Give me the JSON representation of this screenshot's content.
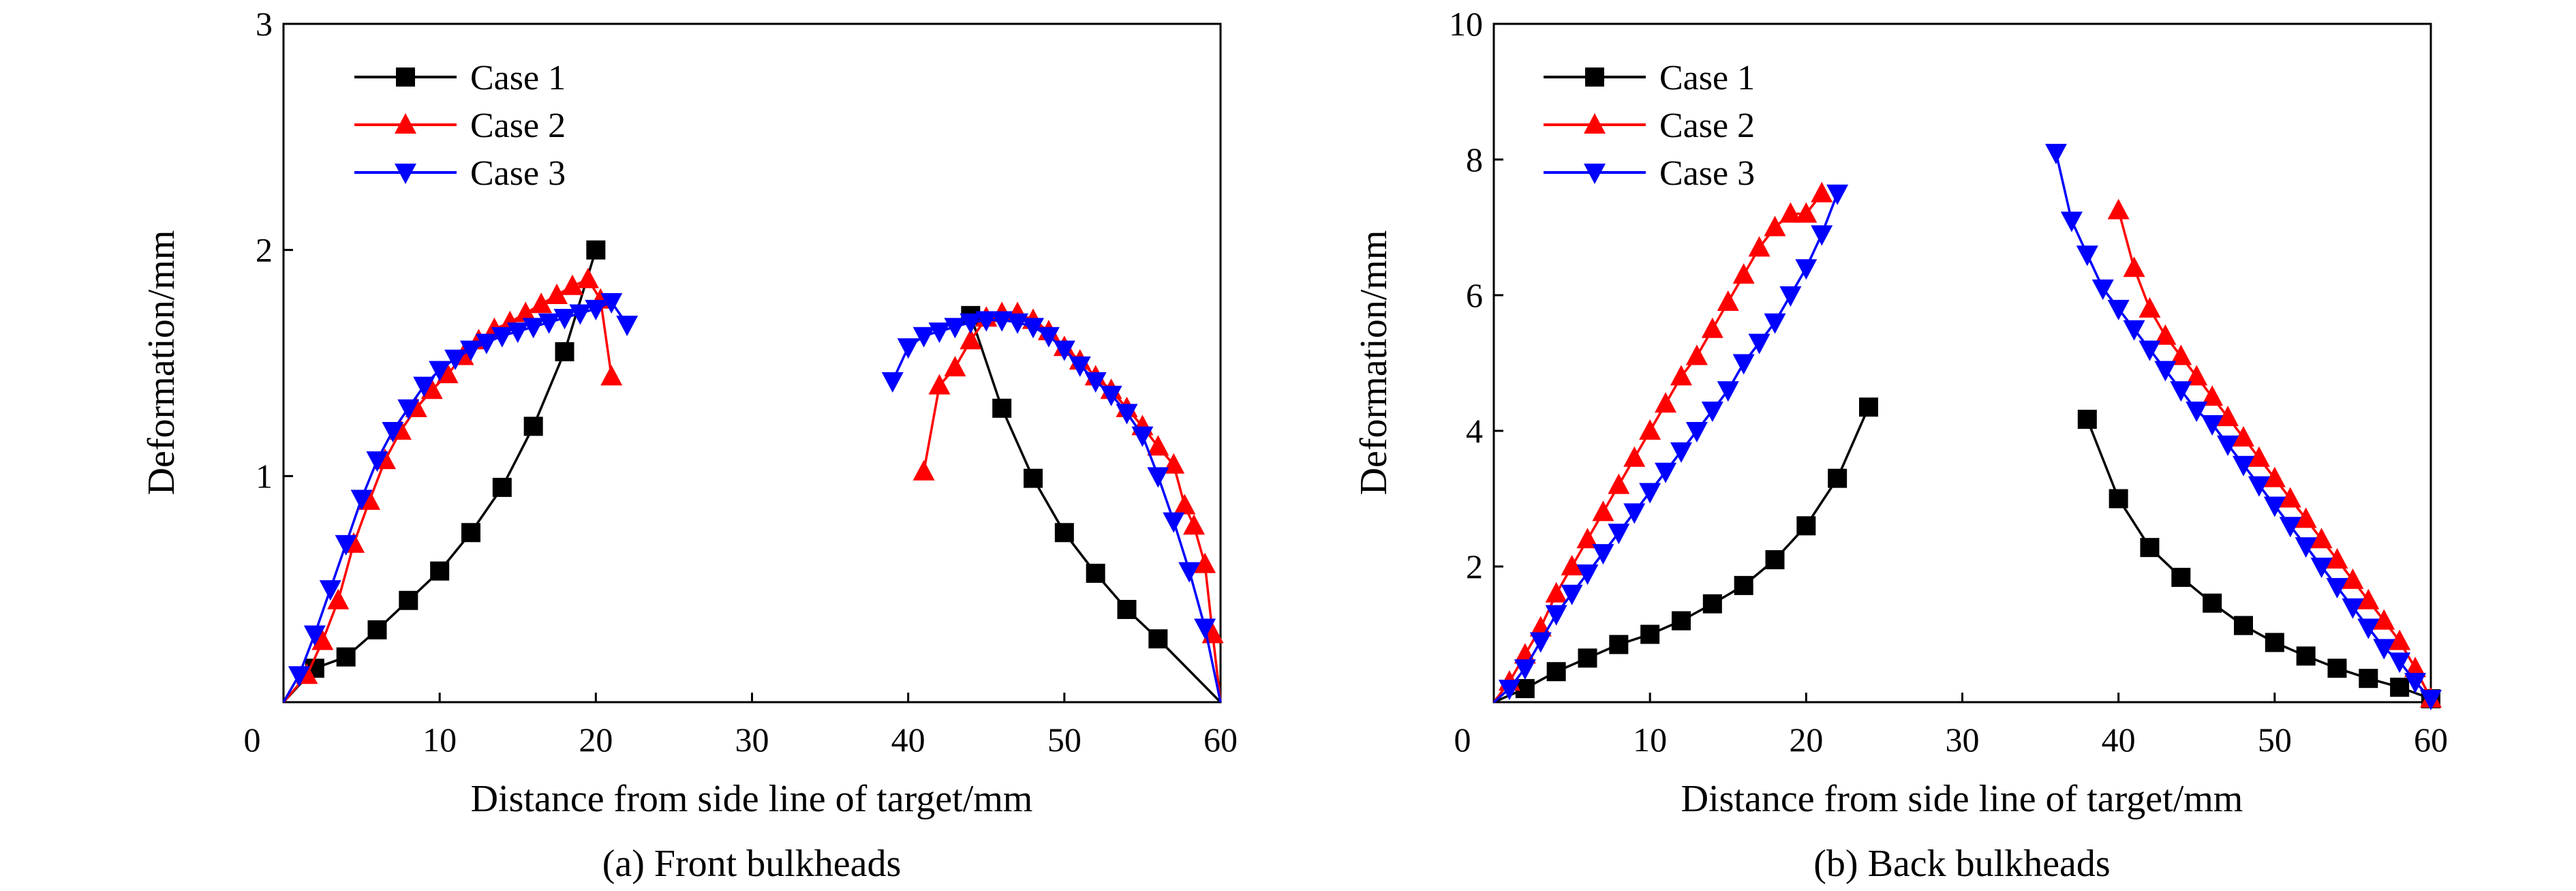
{
  "colors": {
    "case1": "#000000",
    "case2": "#ff0000",
    "case3": "#0000ff",
    "axis": "#000000"
  },
  "chart_data": [
    {
      "type": "line",
      "caption": "(a) Front bulkheads",
      "xlabel": "Distance from side line of target/mm",
      "ylabel": "Deformation/mm",
      "xlim": [
        0,
        60
      ],
      "ylim": [
        0,
        3
      ],
      "xticks": [
        0,
        10,
        20,
        30,
        40,
        50,
        60
      ],
      "yticks": [
        1,
        2,
        3
      ],
      "legend_position": "top-left",
      "series": [
        {
          "name": "Case 1",
          "color": "#000000",
          "marker": "square",
          "segments": [
            [
              [
                0,
                0
              ],
              [
                2,
                0.15
              ],
              [
                4,
                0.2
              ],
              [
                6,
                0.32
              ],
              [
                8,
                0.45
              ],
              [
                10,
                0.58
              ],
              [
                12,
                0.75
              ],
              [
                14,
                0.95
              ],
              [
                16,
                1.22
              ],
              [
                18,
                1.55
              ],
              [
                20,
                2.0
              ]
            ],
            [
              [
                44,
                1.71
              ],
              [
                46,
                1.3
              ],
              [
                48,
                0.99
              ],
              [
                50,
                0.75
              ],
              [
                52,
                0.57
              ],
              [
                54,
                0.41
              ],
              [
                56,
                0.28
              ],
              [
                60,
                0
              ]
            ]
          ]
        },
        {
          "name": "Case 2",
          "color": "#ff0000",
          "marker": "triangle-up",
          "segments": [
            [
              [
                0,
                0
              ],
              [
                1.5,
                0.12
              ],
              [
                2.5,
                0.27
              ],
              [
                3.5,
                0.45
              ],
              [
                4.5,
                0.7
              ],
              [
                5.5,
                0.89
              ],
              [
                6.5,
                1.07
              ],
              [
                7.5,
                1.2
              ],
              [
                8.5,
                1.3
              ],
              [
                9.5,
                1.38
              ],
              [
                10.5,
                1.45
              ],
              [
                11.5,
                1.53
              ],
              [
                12.5,
                1.6
              ],
              [
                13.5,
                1.65
              ],
              [
                14.5,
                1.68
              ],
              [
                15.5,
                1.72
              ],
              [
                16.5,
                1.76
              ],
              [
                17.5,
                1.8
              ],
              [
                18.5,
                1.84
              ],
              [
                19.5,
                1.87
              ],
              [
                20.3,
                1.78
              ],
              [
                21,
                1.44
              ]
            ],
            [
              [
                41,
                1.02
              ],
              [
                42,
                1.4
              ],
              [
                43,
                1.48
              ],
              [
                44,
                1.6
              ],
              [
                45,
                1.7
              ],
              [
                46,
                1.72
              ],
              [
                47,
                1.72
              ],
              [
                48,
                1.69
              ],
              [
                49,
                1.64
              ],
              [
                50,
                1.57
              ],
              [
                51,
                1.51
              ],
              [
                52,
                1.44
              ],
              [
                53,
                1.38
              ],
              [
                54,
                1.3
              ],
              [
                55,
                1.22
              ],
              [
                56,
                1.13
              ],
              [
                57,
                1.05
              ],
              [
                57.7,
                0.87
              ],
              [
                58.3,
                0.78
              ],
              [
                59,
                0.61
              ],
              [
                59.5,
                0.3
              ],
              [
                60,
                0
              ]
            ]
          ]
        },
        {
          "name": "Case 3",
          "color": "#0000ff",
          "marker": "triangle-down",
          "segments": [
            [
              [
                0,
                0
              ],
              [
                1,
                0.12
              ],
              [
                2,
                0.3
              ],
              [
                3,
                0.5
              ],
              [
                4,
                0.7
              ],
              [
                5,
                0.9
              ],
              [
                6,
                1.07
              ],
              [
                7,
                1.2
              ],
              [
                8,
                1.3
              ],
              [
                9,
                1.4
              ],
              [
                10,
                1.47
              ],
              [
                11,
                1.52
              ],
              [
                12,
                1.56
              ],
              [
                13,
                1.59
              ],
              [
                14,
                1.62
              ],
              [
                15,
                1.64
              ],
              [
                16,
                1.66
              ],
              [
                17,
                1.68
              ],
              [
                18,
                1.7
              ],
              [
                19,
                1.72
              ],
              [
                20,
                1.74
              ],
              [
                21,
                1.77
              ],
              [
                22,
                1.67
              ]
            ],
            [
              [
                39,
                1.42
              ],
              [
                40,
                1.57
              ],
              [
                41,
                1.62
              ],
              [
                42,
                1.64
              ],
              [
                43,
                1.66
              ],
              [
                44,
                1.68
              ],
              [
                45,
                1.69
              ],
              [
                46,
                1.69
              ],
              [
                47,
                1.68
              ],
              [
                48,
                1.66
              ],
              [
                49,
                1.62
              ],
              [
                50,
                1.56
              ],
              [
                51,
                1.49
              ],
              [
                52,
                1.42
              ],
              [
                53,
                1.36
              ],
              [
                54,
                1.28
              ],
              [
                55,
                1.18
              ],
              [
                56,
                1.0
              ],
              [
                57,
                0.8
              ],
              [
                58,
                0.58
              ],
              [
                59,
                0.33
              ],
              [
                60,
                0
              ]
            ]
          ]
        }
      ]
    },
    {
      "type": "line",
      "caption": "(b) Back bulkheads",
      "xlabel": "Distance from side line of target/mm",
      "ylabel": "Deformation/mm",
      "xlim": [
        0,
        60
      ],
      "ylim": [
        0,
        10
      ],
      "xticks": [
        0,
        10,
        20,
        30,
        40,
        50,
        60
      ],
      "yticks": [
        2,
        4,
        6,
        8,
        10
      ],
      "legend_position": "top-left",
      "series": [
        {
          "name": "Case 1",
          "color": "#000000",
          "marker": "square",
          "segments": [
            [
              [
                0,
                0
              ],
              [
                2,
                0.2
              ],
              [
                4,
                0.45
              ],
              [
                6,
                0.65
              ],
              [
                8,
                0.85
              ],
              [
                10,
                1.0
              ],
              [
                12,
                1.2
              ],
              [
                14,
                1.45
              ],
              [
                16,
                1.72
              ],
              [
                18,
                2.1
              ],
              [
                20,
                2.6
              ],
              [
                22,
                3.3
              ],
              [
                24,
                4.35
              ]
            ],
            [
              [
                38,
                4.17
              ],
              [
                40,
                3.0
              ],
              [
                42,
                2.28
              ],
              [
                44,
                1.84
              ],
              [
                46,
                1.46
              ],
              [
                48,
                1.13
              ],
              [
                50,
                0.88
              ],
              [
                52,
                0.68
              ],
              [
                54,
                0.5
              ],
              [
                56,
                0.35
              ],
              [
                58,
                0.22
              ],
              [
                60,
                0.05
              ]
            ]
          ]
        },
        {
          "name": "Case 2",
          "color": "#ff0000",
          "marker": "triangle-up",
          "segments": [
            [
              [
                0,
                0
              ],
              [
                1,
                0.3
              ],
              [
                2,
                0.7
              ],
              [
                3,
                1.1
              ],
              [
                4,
                1.6
              ],
              [
                5,
                2.0
              ],
              [
                6,
                2.4
              ],
              [
                7,
                2.8
              ],
              [
                8,
                3.2
              ],
              [
                9,
                3.6
              ],
              [
                10,
                4.0
              ],
              [
                11,
                4.4
              ],
              [
                12,
                4.8
              ],
              [
                13,
                5.1
              ],
              [
                14,
                5.5
              ],
              [
                15,
                5.9
              ],
              [
                16,
                6.3
              ],
              [
                17,
                6.7
              ],
              [
                18,
                7.0
              ],
              [
                19,
                7.2
              ],
              [
                20,
                7.2
              ],
              [
                21,
                7.5
              ]
            ],
            [
              [
                40,
                7.25
              ],
              [
                41,
                6.4
              ],
              [
                42,
                5.8
              ],
              [
                43,
                5.4
              ],
              [
                44,
                5.1
              ],
              [
                45,
                4.8
              ],
              [
                46,
                4.5
              ],
              [
                47,
                4.2
              ],
              [
                48,
                3.9
              ],
              [
                49,
                3.6
              ],
              [
                50,
                3.3
              ],
              [
                51,
                3.0
              ],
              [
                52,
                2.7
              ],
              [
                53,
                2.4
              ],
              [
                54,
                2.1
              ],
              [
                55,
                1.8
              ],
              [
                56,
                1.5
              ],
              [
                57,
                1.2
              ],
              [
                58,
                0.9
              ],
              [
                59,
                0.5
              ],
              [
                60,
                0.05
              ]
            ]
          ]
        },
        {
          "name": "Case 3",
          "color": "#0000ff",
          "marker": "triangle-down",
          "segments": [
            [
              [
                0,
                0
              ],
              [
                1,
                0.2
              ],
              [
                2,
                0.5
              ],
              [
                3,
                0.9
              ],
              [
                4,
                1.3
              ],
              [
                5,
                1.6
              ],
              [
                6,
                1.9
              ],
              [
                7,
                2.2
              ],
              [
                8,
                2.5
              ],
              [
                9,
                2.8
              ],
              [
                10,
                3.1
              ],
              [
                11,
                3.4
              ],
              [
                12,
                3.7
              ],
              [
                13,
                4.0
              ],
              [
                14,
                4.3
              ],
              [
                15,
                4.6
              ],
              [
                16,
                5.0
              ],
              [
                17,
                5.3
              ],
              [
                18,
                5.6
              ],
              [
                19,
                6.0
              ],
              [
                20,
                6.4
              ],
              [
                21,
                6.9
              ],
              [
                22,
                7.5
              ]
            ],
            [
              [
                36,
                8.1
              ],
              [
                37,
                7.1
              ],
              [
                38,
                6.6
              ],
              [
                39,
                6.1
              ],
              [
                40,
                5.8
              ],
              [
                41,
                5.5
              ],
              [
                42,
                5.2
              ],
              [
                43,
                4.9
              ],
              [
                44,
                4.6
              ],
              [
                45,
                4.3
              ],
              [
                46,
                4.1
              ],
              [
                47,
                3.8
              ],
              [
                48,
                3.5
              ],
              [
                49,
                3.2
              ],
              [
                50,
                2.9
              ],
              [
                51,
                2.6
              ],
              [
                52,
                2.3
              ],
              [
                53,
                2.0
              ],
              [
                54,
                1.7
              ],
              [
                55,
                1.4
              ],
              [
                56,
                1.1
              ],
              [
                57,
                0.8
              ],
              [
                58,
                0.6
              ],
              [
                59,
                0.3
              ],
              [
                60,
                0.05
              ]
            ]
          ]
        }
      ]
    }
  ]
}
